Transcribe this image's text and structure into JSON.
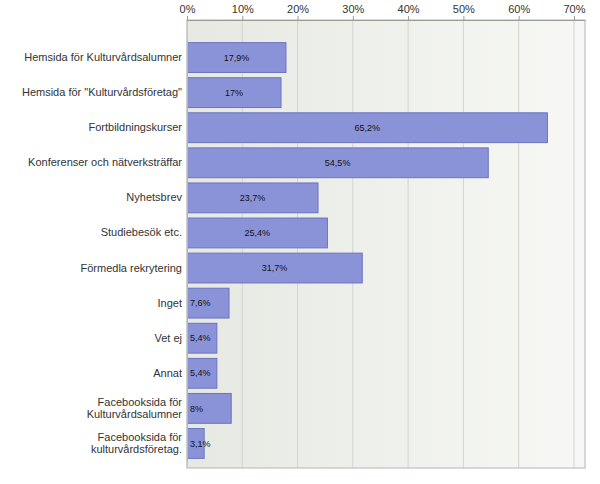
{
  "chart_data": {
    "type": "bar",
    "orientation": "horizontal",
    "categories": [
      "Hemsida för Kulturvårdsalumner",
      "Hemsida för \"Kulturvårdsföretag\"",
      "Fortbildningskurser",
      "Konferenser och nätverksträffar",
      "Nyhetsbrev",
      "Studiebesök etc.",
      "Förmedla rekrytering",
      "Inget",
      "Vet ej",
      "Annat",
      "Facebooksida för Kulturvårdsalumner",
      "Facebooksida för kulturvårdsföretag."
    ],
    "values": [
      17.9,
      17,
      65.2,
      54.5,
      23.7,
      25.4,
      31.7,
      7.6,
      5.4,
      5.4,
      8,
      3.1
    ],
    "value_labels": [
      "17,9%",
      "17%",
      "65,2%",
      "54,5%",
      "23,7%",
      "25,4%",
      "31,7%",
      "7,6%",
      "5,4%",
      "5,4%",
      "8%",
      "3,1%"
    ],
    "color": "#8b93d8",
    "xlim": [
      0,
      72
    ],
    "xticks": [
      {
        "value": 0,
        "label": "0%"
      },
      {
        "value": 10,
        "label": "10%"
      },
      {
        "value": 20,
        "label": "20%"
      },
      {
        "value": 30,
        "label": "30%"
      },
      {
        "value": 40,
        "label": "40%"
      },
      {
        "value": 50,
        "label": "50%"
      },
      {
        "value": 60,
        "label": "60%"
      },
      {
        "value": 70,
        "label": "70%"
      }
    ],
    "grid": true,
    "data_labels": true
  }
}
